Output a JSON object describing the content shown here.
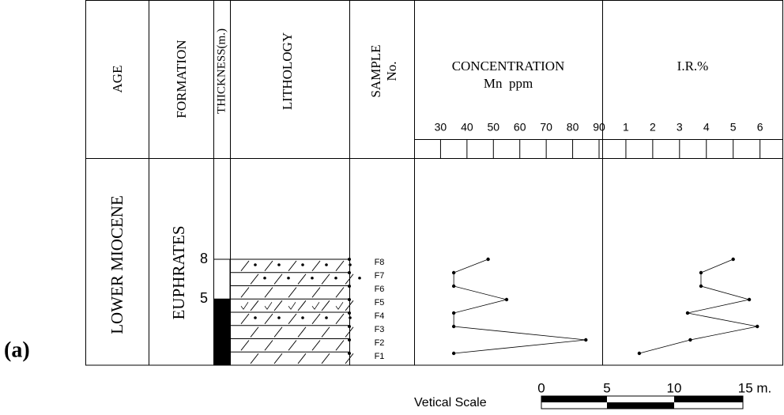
{
  "panel_label": "(a)",
  "columns": {
    "age": "AGE",
    "formation": "FORMATION",
    "thickness": "THICKNESS(m.)",
    "lithology": "LITHOLOGY",
    "sample": [
      "SAMPLE",
      "No."
    ]
  },
  "age": "LOWER MIOCENE",
  "formation": "EUPHRATES",
  "thickness": {
    "ylim": [
      0,
      8
    ],
    "yticks": [
      5,
      8
    ]
  },
  "chart_data": [
    {
      "type": "line",
      "title": "CONCENTRATION",
      "subtitle": "Mn  ppm",
      "categories": [
        "F1",
        "F2",
        "F3",
        "F4",
        "F5",
        "F6",
        "F7",
        "F8"
      ],
      "values": [
        35,
        85,
        35,
        35,
        55,
        35,
        35,
        48
      ],
      "color": "#000000",
      "xlim": [
        20,
        90
      ],
      "xticks": [
        30,
        40,
        50,
        60,
        70,
        80,
        90
      ]
    },
    {
      "type": "line",
      "title": "I.R.%",
      "values": [
        1.5,
        3.4,
        5.9,
        3.3,
        5.6,
        3.8,
        3.8,
        5.0
      ],
      "color": "#000000",
      "xlim": [
        0,
        6.6
      ],
      "xticks": [
        1,
        2,
        3,
        4,
        5,
        6
      ]
    }
  ],
  "scale_bar": {
    "title": "Vetical Scale",
    "labels": [
      "0",
      "5",
      "10",
      "15 m."
    ]
  }
}
